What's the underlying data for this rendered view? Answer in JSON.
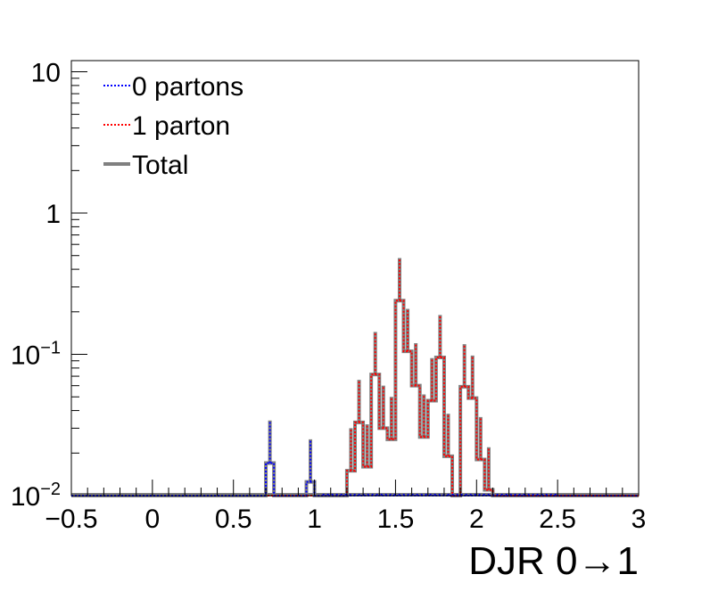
{
  "chart_data": {
    "type": "histogram",
    "xlabel": "DJR 0→1",
    "ylabel": "",
    "xlim": [
      -0.5,
      3.0
    ],
    "ylim": [
      0.01,
      12
    ],
    "yscale": "log",
    "grid": false,
    "legend_position": "top-left",
    "x_tick_labels": [
      "−0.5",
      "0",
      "0.5",
      "1",
      "1.5",
      "2",
      "2.5",
      "3"
    ],
    "x_tick_values": [
      -0.5,
      0,
      0.5,
      1,
      1.5,
      2,
      2.5,
      3
    ],
    "y_tick_values": [
      0.01,
      0.1,
      1,
      10
    ],
    "y_tick_labels": [
      {
        "base": "10",
        "exp": "−2"
      },
      {
        "base": "10",
        "exp": "−1"
      },
      {
        "base": "1",
        "exp": ""
      },
      {
        "base": "10",
        "exp": ""
      }
    ],
    "bin_width": 0.05,
    "error_bar_scale": 2.0,
    "series": [
      {
        "name": "0 partons",
        "color": "#0000ff",
        "line_style": "dotted",
        "bins": [
          {
            "x": 0.7,
            "y": 0.017
          },
          {
            "x": 0.75,
            "y": 0.0
          },
          {
            "x": 0.95,
            "y": 0.0125
          },
          {
            "x": 1.0,
            "y": 0.0
          }
        ]
      },
      {
        "name": "1 parton",
        "color": "#ff0000",
        "line_style": "dotted",
        "bins": [
          {
            "x": 1.15,
            "y": 0.0
          },
          {
            "x": 1.2,
            "y": 0.015
          },
          {
            "x": 1.25,
            "y": 0.033
          },
          {
            "x": 1.3,
            "y": 0.016
          },
          {
            "x": 1.35,
            "y": 0.072
          },
          {
            "x": 1.4,
            "y": 0.03
          },
          {
            "x": 1.45,
            "y": 0.025
          },
          {
            "x": 1.5,
            "y": 0.24
          },
          {
            "x": 1.55,
            "y": 0.105
          },
          {
            "x": 1.6,
            "y": 0.06
          },
          {
            "x": 1.65,
            "y": 0.026
          },
          {
            "x": 1.7,
            "y": 0.047
          },
          {
            "x": 1.75,
            "y": 0.095
          },
          {
            "x": 1.8,
            "y": 0.019
          },
          {
            "x": 1.85,
            "y": 0.0
          },
          {
            "x": 1.9,
            "y": 0.059
          },
          {
            "x": 1.95,
            "y": 0.049
          },
          {
            "x": 2.0,
            "y": 0.018
          },
          {
            "x": 2.05,
            "y": 0.011
          },
          {
            "x": 2.1,
            "y": 0.0
          }
        ]
      },
      {
        "name": "Total",
        "color": "#808080",
        "line_style": "solid",
        "bins": []
      }
    ]
  }
}
